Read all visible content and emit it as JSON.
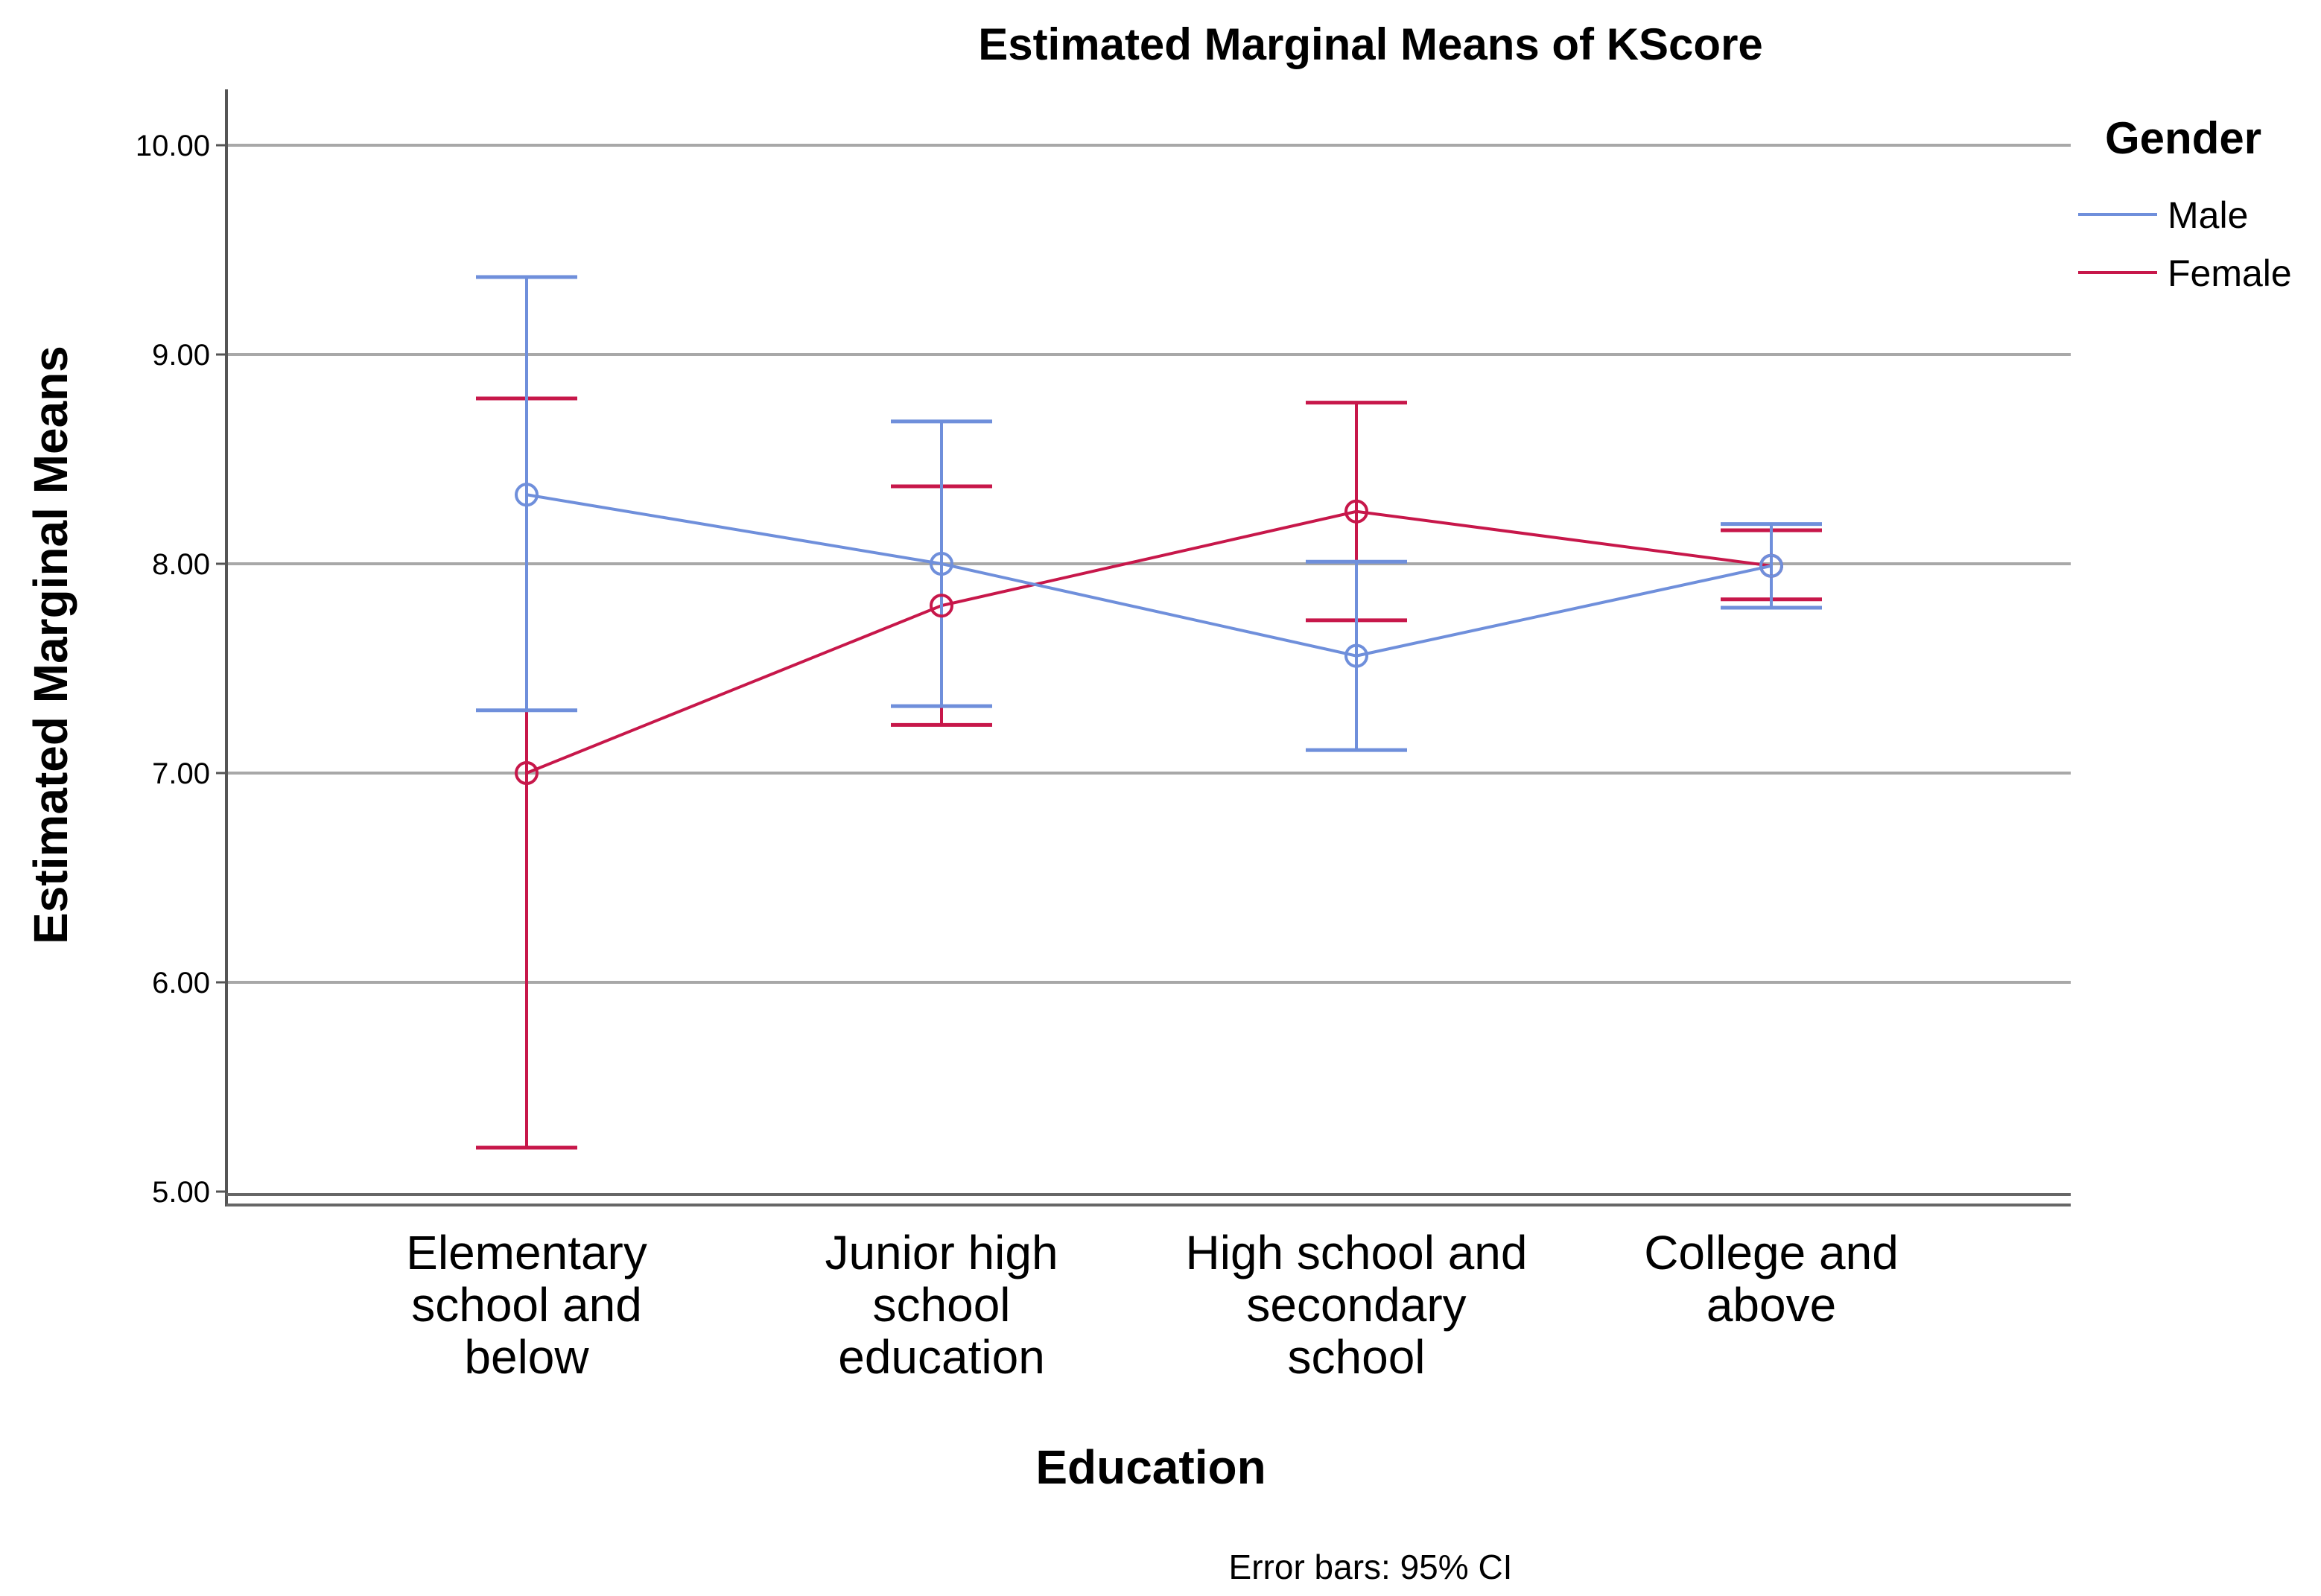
{
  "chart_data": {
    "type": "line",
    "title": "Estimated Marginal Means of KScore",
    "xlabel": "Education",
    "ylabel": "Estimated Marginal Means",
    "ylim": [
      5.0,
      10.0
    ],
    "yticks": [
      "5.00",
      "6.00",
      "7.00",
      "8.00",
      "9.00",
      "10.00"
    ],
    "categories": [
      [
        "Elementary",
        "school and",
        "below"
      ],
      [
        "Junior high",
        "school",
        "education"
      ],
      [
        "High school and",
        "secondary",
        "school"
      ],
      [
        "College and",
        "above"
      ]
    ],
    "legend": {
      "title": "Gender",
      "placement": "right"
    },
    "series": [
      {
        "name": "Male",
        "color": "#6F8FDB",
        "values": [
          8.33,
          8.0,
          7.56,
          7.99
        ],
        "ci_lower": [
          7.3,
          7.32,
          7.11,
          7.79
        ],
        "ci_upper": [
          9.37,
          8.68,
          8.01,
          8.19
        ]
      },
      {
        "name": "Female",
        "color": "#C7174A",
        "values": [
          7.0,
          7.8,
          8.25,
          7.99
        ],
        "ci_lower": [
          5.21,
          7.23,
          7.73,
          7.83
        ],
        "ci_upper": [
          8.79,
          8.37,
          8.77,
          8.16
        ]
      }
    ],
    "grid": true,
    "footnote": "Error bars: 95% CI"
  }
}
